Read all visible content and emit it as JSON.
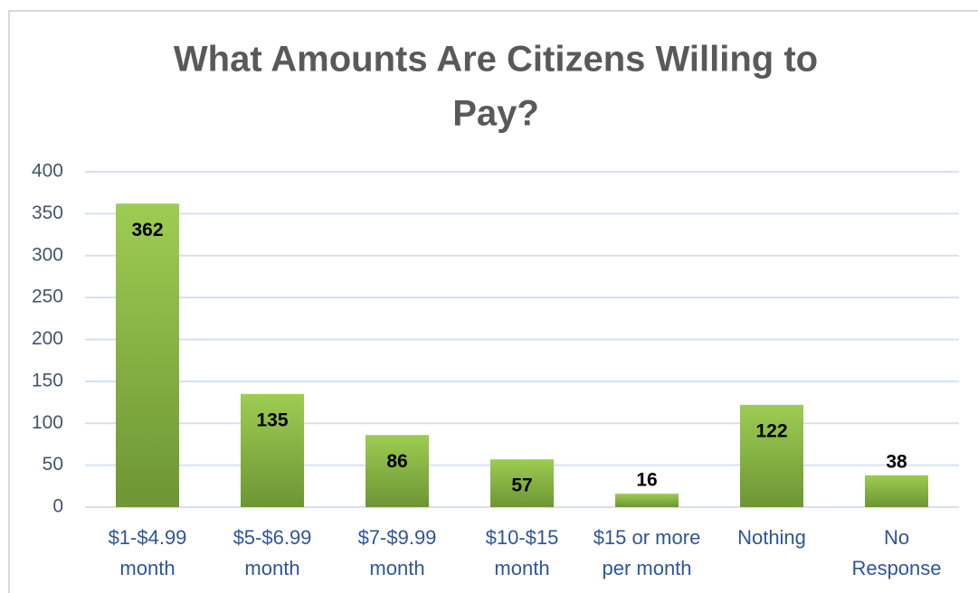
{
  "chart_data": {
    "type": "bar",
    "title": [
      "What Amounts Are Citizens Willing to",
      "Pay?"
    ],
    "categories": [
      [
        "$1-$4.99",
        "month"
      ],
      [
        "$5-$6.99",
        "month"
      ],
      [
        "$7-$9.99",
        "month"
      ],
      [
        "$10-$15",
        "month"
      ],
      [
        "$15 or more",
        "per month"
      ],
      [
        "Nothing"
      ],
      [
        "No",
        "Response"
      ]
    ],
    "values": [
      362,
      135,
      86,
      57,
      16,
      122,
      38
    ],
    "color": [
      "#9dcc52",
      "#6d9634"
    ],
    "ylim": [
      0,
      400
    ],
    "yticks": [
      0,
      50,
      100,
      150,
      200,
      250,
      300,
      350,
      400
    ],
    "grid": true
  }
}
